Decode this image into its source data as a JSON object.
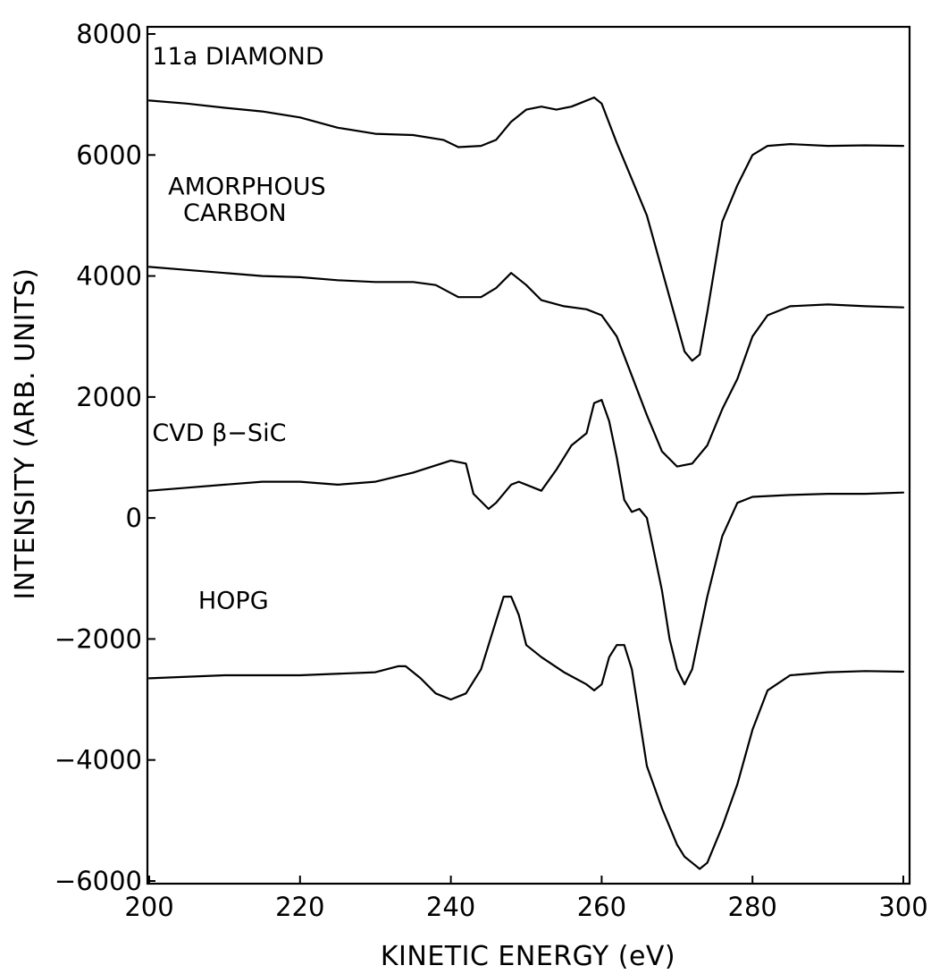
{
  "chart_data": {
    "type": "line",
    "xlabel": "KINETIC ENERGY (eV)",
    "ylabel": "INTENSITY (ARB. UNITS)",
    "xlim": [
      200,
      300
    ],
    "ylim": [
      -6000,
      8000
    ],
    "xticks": [
      200,
      220,
      240,
      260,
      280,
      300
    ],
    "yticks": [
      8000,
      6000,
      4000,
      2000,
      0,
      -2000,
      -4000,
      -6000
    ],
    "xtick_labels": [
      "200",
      "220",
      "240",
      "260",
      "280",
      "300"
    ],
    "ytick_labels": [
      "8000",
      "6000",
      "4000",
      "2000",
      "0",
      "−2000",
      "−4000",
      "−6000"
    ],
    "grid": false,
    "legend": "none",
    "series": [
      {
        "name": "11a DIAMOND",
        "x": [
          200,
          205,
          210,
          215,
          220,
          225,
          230,
          235,
          239,
          241,
          244,
          246,
          248,
          250,
          252,
          254,
          256,
          257,
          259,
          260,
          262,
          264,
          266,
          268,
          270,
          271,
          272,
          273,
          274,
          276,
          278,
          280,
          282,
          285,
          290,
          295,
          300
        ],
        "y": [
          6900,
          6850,
          6780,
          6720,
          6620,
          6450,
          6350,
          6330,
          6250,
          6130,
          6150,
          6250,
          6550,
          6750,
          6800,
          6750,
          6800,
          6850,
          6950,
          6850,
          6200,
          5600,
          5000,
          4100,
          3200,
          2750,
          2600,
          2700,
          3400,
          4900,
          5500,
          6000,
          6150,
          6180,
          6150,
          6160,
          6150
        ]
      },
      {
        "name": "AMORPHOUS CARBON",
        "x": [
          200,
          205,
          210,
          215,
          220,
          225,
          230,
          235,
          238,
          241,
          244,
          246,
          248,
          250,
          252,
          255,
          258,
          260,
          262,
          264,
          266,
          268,
          270,
          272,
          274,
          276,
          278,
          280,
          282,
          285,
          290,
          295,
          300
        ],
        "y": [
          4150,
          4100,
          4050,
          4000,
          3980,
          3930,
          3900,
          3900,
          3850,
          3650,
          3650,
          3800,
          4050,
          3850,
          3600,
          3500,
          3450,
          3350,
          3000,
          2350,
          1700,
          1100,
          850,
          900,
          1200,
          1800,
          2300,
          3000,
          3350,
          3500,
          3530,
          3500,
          3480
        ]
      },
      {
        "name": "CVD β−SiC",
        "x": [
          200,
          205,
          210,
          215,
          220,
          225,
          230,
          235,
          240,
          242,
          243,
          245,
          246,
          248,
          249,
          251,
          252,
          254,
          256,
          258,
          259,
          260,
          261,
          262,
          263,
          264,
          265,
          266,
          267,
          268,
          269,
          270,
          271,
          272,
          273,
          274,
          276,
          278,
          280,
          285,
          290,
          295,
          300
        ],
        "y": [
          450,
          500,
          550,
          600,
          600,
          550,
          600,
          750,
          950,
          900,
          400,
          150,
          250,
          550,
          600,
          500,
          450,
          800,
          1200,
          1400,
          1900,
          1950,
          1600,
          1000,
          300,
          100,
          150,
          0,
          -600,
          -1200,
          -2000,
          -2500,
          -2750,
          -2500,
          -1900,
          -1300,
          -300,
          250,
          350,
          380,
          400,
          400,
          420
        ]
      },
      {
        "name": "HOPG",
        "x": [
          200,
          210,
          220,
          230,
          233,
          234,
          236,
          238,
          240,
          242,
          244,
          246,
          247,
          248,
          249,
          250,
          252,
          255,
          258,
          259,
          260,
          261,
          262,
          263,
          264,
          265,
          266,
          268,
          270,
          271,
          272,
          273,
          274,
          276,
          278,
          280,
          282,
          285,
          290,
          295,
          300
        ],
        "y": [
          -2650,
          -2600,
          -2600,
          -2550,
          -2450,
          -2450,
          -2650,
          -2900,
          -3000,
          -2900,
          -2500,
          -1700,
          -1300,
          -1300,
          -1600,
          -2100,
          -2300,
          -2550,
          -2750,
          -2850,
          -2750,
          -2300,
          -2100,
          -2100,
          -2500,
          -3300,
          -4100,
          -4800,
          -5400,
          -5600,
          -5700,
          -5800,
          -5700,
          -5100,
          -4400,
          -3500,
          -2850,
          -2600,
          -2550,
          -2530,
          -2540
        ]
      }
    ],
    "annotations": [
      {
        "text": "11a DIAMOND",
        "x": 200.4,
        "y": 7500
      },
      {
        "text": "AMORPHOUS",
        "x": 202.5,
        "y": 5350
      },
      {
        "text": "CARBON",
        "x": 204.5,
        "y": 4910
      },
      {
        "text": "CVD β−SiC",
        "x": 200.4,
        "y": 1270
      },
      {
        "text": "HOPG",
        "x": 206.5,
        "y": -1500
      }
    ]
  }
}
